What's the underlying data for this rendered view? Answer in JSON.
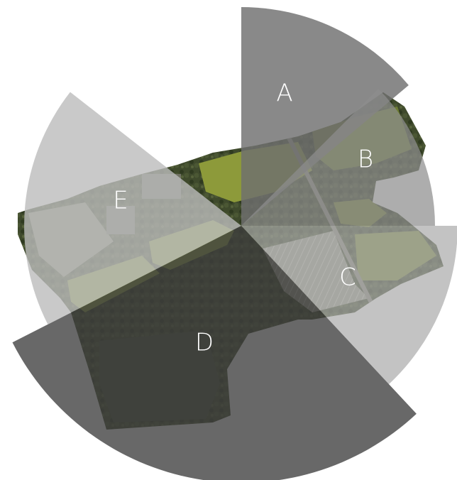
{
  "diagram": {
    "sectors": [
      {
        "id": "A",
        "label": "A",
        "color": "#6f6f6f",
        "opacity": 0.82
      },
      {
        "id": "B",
        "label": "B",
        "color": "#8d8d8d",
        "opacity": 0.72
      },
      {
        "id": "C",
        "label": "C",
        "color": "#a9a9a9",
        "opacity": 0.7
      },
      {
        "id": "D",
        "label": "D",
        "color": "#3e3e3e",
        "opacity": 0.78
      },
      {
        "id": "E",
        "label": "E",
        "color": "#bcbcbc",
        "opacity": 0.8
      }
    ]
  }
}
